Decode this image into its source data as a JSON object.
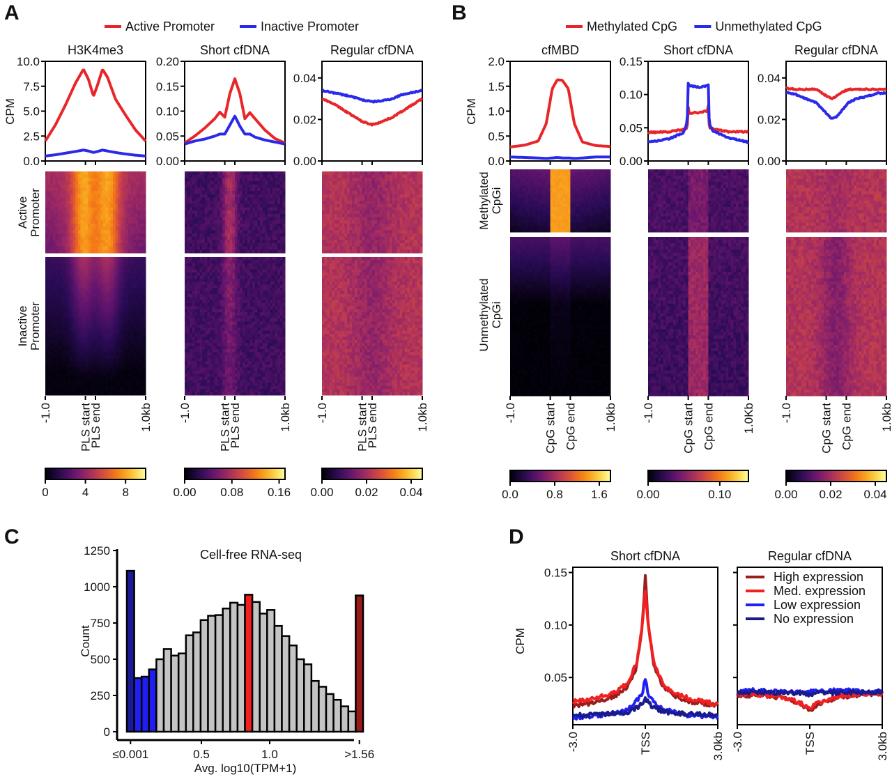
{
  "chart_data": [
    {
      "panel": "A",
      "type": "line",
      "legend": [
        {
          "label": "Active Promoter",
          "color": "#e8262a"
        },
        {
          "label": "Inactive Promoter",
          "color": "#2a2ae8"
        }
      ],
      "ylabel": "CPM",
      "x_ticks": [
        "-1.0",
        "PLS start",
        "PLS end",
        "1.0kb"
      ],
      "row_labels": [
        "Active\nPromoter",
        "Inactive\nPromoter"
      ],
      "subplots": [
        {
          "title": "H3K4me3",
          "ylim": [
            0,
            10
          ],
          "y_ticks": [
            "0.0",
            "2.5",
            "5.0",
            "7.5",
            "10.0"
          ],
          "x": [
            0,
            0.1,
            0.2,
            0.3,
            0.38,
            0.43,
            0.48,
            0.52,
            0.57,
            0.62,
            0.7,
            0.8,
            0.9,
            1.0
          ],
          "series": [
            {
              "name": "Active Promoter",
              "values": [
                2.0,
                3.6,
                5.6,
                7.8,
                9.2,
                8.2,
                6.5,
                7.6,
                9.2,
                8.4,
                6.2,
                4.6,
                3.1,
                2.0
              ]
            },
            {
              "name": "Inactive Promoter",
              "values": [
                0.5,
                0.62,
                0.78,
                0.95,
                1.1,
                1.0,
                0.85,
                0.95,
                1.1,
                1.0,
                0.85,
                0.7,
                0.58,
                0.5
              ]
            }
          ],
          "heatmap": {
            "colorbar_ticks": [
              "0",
              "4",
              "8"
            ],
            "range": [
              0,
              10
            ]
          }
        },
        {
          "title": "Short cfDNA",
          "ylim": [
            0,
            0.2
          ],
          "y_ticks": [
            "0.00",
            "0.05",
            "0.10",
            "0.15",
            "0.20"
          ],
          "x": [
            0,
            0.1,
            0.2,
            0.3,
            0.35,
            0.4,
            0.45,
            0.5,
            0.55,
            0.6,
            0.65,
            0.7,
            0.8,
            0.9,
            1.0
          ],
          "series": [
            {
              "name": "Active Promoter",
              "values": [
                0.036,
                0.05,
                0.066,
                0.085,
                0.098,
                0.088,
                0.135,
                0.165,
                0.135,
                0.085,
                0.097,
                0.085,
                0.062,
                0.045,
                0.036
              ]
            },
            {
              "name": "Inactive Promoter",
              "values": [
                0.034,
                0.04,
                0.044,
                0.05,
                0.054,
                0.054,
                0.072,
                0.09,
                0.07,
                0.054,
                0.054,
                0.048,
                0.042,
                0.038,
                0.034
              ]
            }
          ],
          "heatmap": {
            "colorbar_ticks": [
              "0.00",
              "0.08",
              "0.16"
            ],
            "range": [
              0,
              0.17
            ]
          }
        },
        {
          "title": "Regular cfDNA",
          "ylim": [
            0,
            0.048
          ],
          "y_ticks": [
            "0.00",
            "0.02",
            "0.04"
          ],
          "x": [
            0,
            0.1,
            0.2,
            0.3,
            0.4,
            0.5,
            0.6,
            0.7,
            0.8,
            0.9,
            1.0
          ],
          "series": [
            {
              "name": "Active Promoter",
              "values": [
                0.03,
                0.028,
                0.025,
                0.022,
                0.019,
                0.0175,
                0.019,
                0.021,
                0.024,
                0.027,
                0.03
              ]
            },
            {
              "name": "Inactive Promoter",
              "values": [
                0.034,
                0.033,
                0.032,
                0.031,
                0.0295,
                0.0285,
                0.029,
                0.03,
                0.032,
                0.033,
                0.034
              ]
            }
          ],
          "heatmap": {
            "colorbar_ticks": [
              "0.00",
              "0.02",
              "0.04"
            ],
            "range": [
              0,
              0.045
            ]
          }
        }
      ]
    },
    {
      "panel": "B",
      "type": "line",
      "legend": [
        {
          "label": "Methylated CpG",
          "color": "#e8262a"
        },
        {
          "label": "Unmethylated CpG",
          "color": "#2a2ae8"
        }
      ],
      "ylabel": "CPM",
      "row_labels": [
        "Methylated\nCpGi",
        "Unmethylated\nCpGi"
      ],
      "subplots": [
        {
          "title": "cfMBD",
          "ylim": [
            0,
            2.0
          ],
          "y_ticks": [
            "0.0",
            "0.5",
            "1.0",
            "1.5",
            "2.0"
          ],
          "x_ticks": [
            "-1.0",
            "CpG start",
            "CpG end",
            "1.0kb"
          ],
          "x": [
            0,
            0.15,
            0.28,
            0.36,
            0.42,
            0.47,
            0.52,
            0.58,
            0.64,
            0.72,
            0.85,
            1.0
          ],
          "series": [
            {
              "name": "Methylated CpG",
              "values": [
                0.28,
                0.32,
                0.4,
                0.75,
                1.45,
                1.63,
                1.62,
                1.45,
                0.75,
                0.38,
                0.31,
                0.29
              ]
            },
            {
              "name": "Unmethylated CpG",
              "values": [
                0.08,
                0.07,
                0.06,
                0.05,
                0.06,
                0.07,
                0.06,
                0.06,
                0.05,
                0.06,
                0.08,
                0.08
              ]
            }
          ],
          "heatmap": {
            "colorbar_ticks": [
              "0.0",
              "0.8",
              "1.6"
            ],
            "range": [
              0,
              1.8
            ]
          }
        },
        {
          "title": "Short cfDNA",
          "ylim": [
            0,
            0.15
          ],
          "y_ticks": [
            "0.00",
            "0.05",
            "0.10",
            "0.15"
          ],
          "x_ticks": [
            "-1.0",
            "CpG start",
            "CpG end",
            "1.0Kb"
          ],
          "x": [
            0,
            0.2,
            0.35,
            0.39,
            0.4,
            0.41,
            0.5,
            0.59,
            0.6,
            0.61,
            0.65,
            0.8,
            1.0
          ],
          "series": [
            {
              "name": "Methylated CpG",
              "values": [
                0.043,
                0.044,
                0.047,
                0.05,
                0.082,
                0.072,
                0.073,
                0.075,
                0.083,
                0.05,
                0.048,
                0.044,
                0.044
              ]
            },
            {
              "name": "Unmethylated CpG",
              "values": [
                0.028,
                0.033,
                0.042,
                0.058,
                0.117,
                0.113,
                0.111,
                0.113,
                0.114,
                0.055,
                0.045,
                0.035,
                0.028
              ]
            }
          ],
          "heatmap": {
            "colorbar_ticks": [
              "0.00",
              "0.10"
            ],
            "range": [
              0,
              0.14
            ]
          }
        },
        {
          "title": "Regular cfDNA",
          "ylim": [
            0,
            0.048
          ],
          "y_ticks": [
            "0.00",
            "0.02",
            "0.04"
          ],
          "x_ticks": [
            "-1.0",
            "CpG start",
            "CpG end",
            "1.0kb"
          ],
          "x": [
            0,
            0.1,
            0.2,
            0.3,
            0.38,
            0.45,
            0.5,
            0.55,
            0.62,
            0.7,
            0.8,
            0.9,
            1.0
          ],
          "series": [
            {
              "name": "Methylated CpG",
              "values": [
                0.035,
                0.0345,
                0.0345,
                0.0345,
                0.032,
                0.03,
                0.031,
                0.033,
                0.0345,
                0.0345,
                0.0345,
                0.0345,
                0.0345
              ]
            },
            {
              "name": "Unmethylated CpG",
              "values": [
                0.033,
                0.032,
                0.03,
                0.028,
                0.024,
                0.0205,
                0.021,
                0.024,
                0.028,
                0.03,
                0.031,
                0.0325,
                0.033
              ]
            }
          ],
          "heatmap": {
            "colorbar_ticks": [
              "0.00",
              "0.02",
              "0.04"
            ],
            "range": [
              0,
              0.045
            ]
          }
        }
      ]
    },
    {
      "panel": "C",
      "type": "bar",
      "title": "Cell-free RNA-seq",
      "xlabel": "Avg. log10(TPM+1)",
      "ylabel": "Count",
      "ylim": [
        0,
        1250
      ],
      "y_ticks": [
        "0",
        "250",
        "500",
        "750",
        "1000",
        "1250"
      ],
      "x_ticks": [
        "≤0.001",
        "0.5",
        "1.0",
        ">1.56"
      ],
      "bin_width": 0.05,
      "values": [
        1110,
        370,
        380,
        430,
        500,
        570,
        525,
        540,
        665,
        685,
        770,
        800,
        805,
        850,
        890,
        875,
        945,
        895,
        815,
        840,
        730,
        660,
        595,
        500,
        465,
        350,
        310,
        260,
        220,
        175,
        140,
        940
      ],
      "bar_groups": [
        "none",
        "low",
        "low",
        "low",
        "other",
        "other",
        "other",
        "other",
        "other",
        "other",
        "other",
        "other",
        "other",
        "other",
        "other",
        "other",
        "med",
        "other",
        "other",
        "other",
        "other",
        "other",
        "other",
        "other",
        "other",
        "other",
        "other",
        "other",
        "other",
        "other",
        "other",
        "high"
      ],
      "group_colors": {
        "none": "#1a1a96",
        "low": "#1f1ff2",
        "other": "#c4c4c4",
        "med": "#f21f1f",
        "high": "#961a1a"
      }
    },
    {
      "panel": "D",
      "type": "line",
      "ylabel": "CPM",
      "ylim": [
        0.005,
        0.155
      ],
      "y_ticks": [
        "0.05",
        "0.10",
        "0.15"
      ],
      "x_ticks": [
        "-3.0",
        "TSS",
        "3.0kb"
      ],
      "legend": [
        {
          "label": "High expression",
          "color": "#9a1e1e"
        },
        {
          "label": "Med. expression",
          "color": "#f22020"
        },
        {
          "label": "Low expression",
          "color": "#2020f2"
        },
        {
          "label": "No expression",
          "color": "#1a1a8a"
        }
      ],
      "subplots": [
        {
          "title": "Short cfDNA",
          "x": [
            0,
            0.1,
            0.2,
            0.3,
            0.38,
            0.44,
            0.48,
            0.5,
            0.52,
            0.56,
            0.62,
            0.7,
            0.8,
            0.9,
            1.0
          ],
          "series": [
            {
              "name": "High expression",
              "values": [
                0.022,
                0.025,
                0.028,
                0.033,
                0.042,
                0.06,
                0.1,
                0.148,
                0.1,
                0.062,
                0.042,
                0.033,
                0.027,
                0.025,
                0.023
              ]
            },
            {
              "name": "Med. expression",
              "values": [
                0.027,
                0.029,
                0.032,
                0.036,
                0.045,
                0.064,
                0.1,
                0.133,
                0.1,
                0.064,
                0.044,
                0.035,
                0.03,
                0.027,
                0.025
              ]
            },
            {
              "name": "Low expression",
              "values": [
                0.012,
                0.013,
                0.014,
                0.016,
                0.019,
                0.028,
                0.034,
                0.05,
                0.033,
                0.026,
                0.02,
                0.017,
                0.014,
                0.013,
                0.012
              ]
            },
            {
              "name": "No expression",
              "values": [
                0.015,
                0.014,
                0.015,
                0.016,
                0.017,
                0.021,
                0.026,
                0.031,
                0.026,
                0.021,
                0.018,
                0.016,
                0.015,
                0.015,
                0.014
              ]
            }
          ]
        },
        {
          "title": "Regular cfDNA",
          "x": [
            0,
            0.1,
            0.2,
            0.3,
            0.4,
            0.45,
            0.5,
            0.55,
            0.6,
            0.7,
            0.8,
            0.9,
            1.0
          ],
          "series": [
            {
              "name": "High expression",
              "values": [
                0.033,
                0.033,
                0.032,
                0.031,
                0.027,
                0.023,
                0.019,
                0.023,
                0.027,
                0.031,
                0.033,
                0.034,
                0.034
              ]
            },
            {
              "name": "Med. expression",
              "values": [
                0.034,
                0.034,
                0.033,
                0.032,
                0.028,
                0.025,
                0.021,
                0.025,
                0.028,
                0.032,
                0.034,
                0.035,
                0.035
              ]
            },
            {
              "name": "Low expression",
              "values": [
                0.037,
                0.038,
                0.037,
                0.036,
                0.036,
                0.036,
                0.036,
                0.037,
                0.037,
                0.038,
                0.037,
                0.036,
                0.037
              ]
            },
            {
              "name": "No expression",
              "values": [
                0.036,
                0.036,
                0.036,
                0.035,
                0.035,
                0.035,
                0.034,
                0.035,
                0.036,
                0.035,
                0.036,
                0.036,
                0.036
              ]
            }
          ]
        }
      ]
    }
  ]
}
